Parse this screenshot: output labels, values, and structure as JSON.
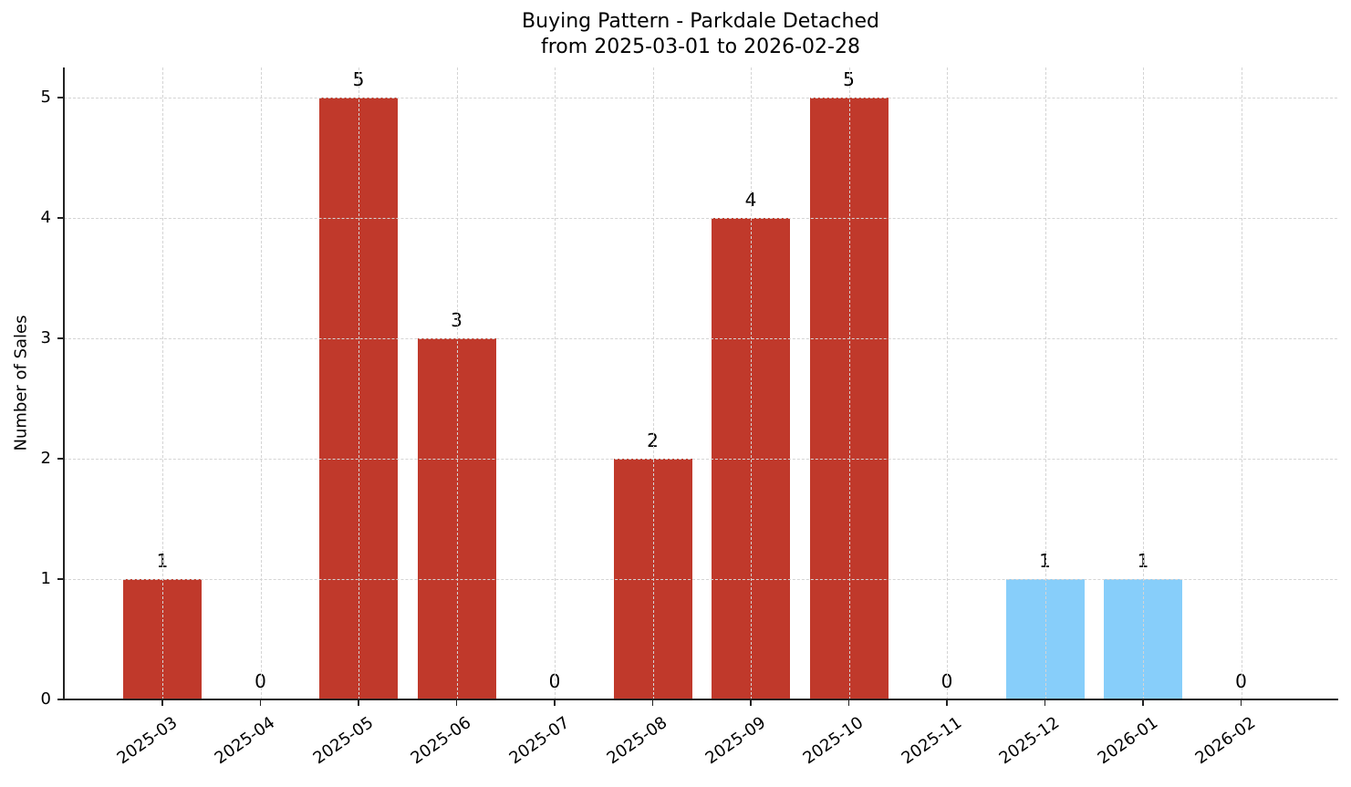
{
  "chart_data": {
    "type": "bar",
    "title": "Buying Pattern - Parkdale Detached\nfrom 2025-03-01 to 2026-02-28",
    "title_lines": [
      "Buying Pattern - Parkdale Detached",
      "from 2025-03-01 to 2026-02-28"
    ],
    "xlabel": "",
    "ylabel": "Number of Sales",
    "categories": [
      "2025-03",
      "2025-04",
      "2025-05",
      "2025-06",
      "2025-07",
      "2025-08",
      "2025-09",
      "2025-10",
      "2025-11",
      "2025-12",
      "2026-01",
      "2026-02"
    ],
    "values": [
      1,
      0,
      5,
      3,
      0,
      2,
      4,
      5,
      0,
      1,
      1,
      0
    ],
    "bar_colors": [
      "#c0392b",
      "#c0392b",
      "#c0392b",
      "#c0392b",
      "#c0392b",
      "#c0392b",
      "#c0392b",
      "#c0392b",
      "#c0392b",
      "#87cefa",
      "#87cefa",
      "#87cefa"
    ],
    "data_labels": [
      "1",
      "0",
      "5",
      "3",
      "0",
      "2",
      "4",
      "5",
      "0",
      "1",
      "1",
      "0"
    ],
    "yticks": [
      0,
      1,
      2,
      3,
      4,
      5
    ],
    "ylim": [
      0,
      5.25
    ],
    "grid": true,
    "legend": null
  },
  "colors": {
    "primary_bar": "#c0392b",
    "secondary_bar": "#87cefa",
    "grid": "#d4d4d4",
    "axis": "#222222"
  }
}
